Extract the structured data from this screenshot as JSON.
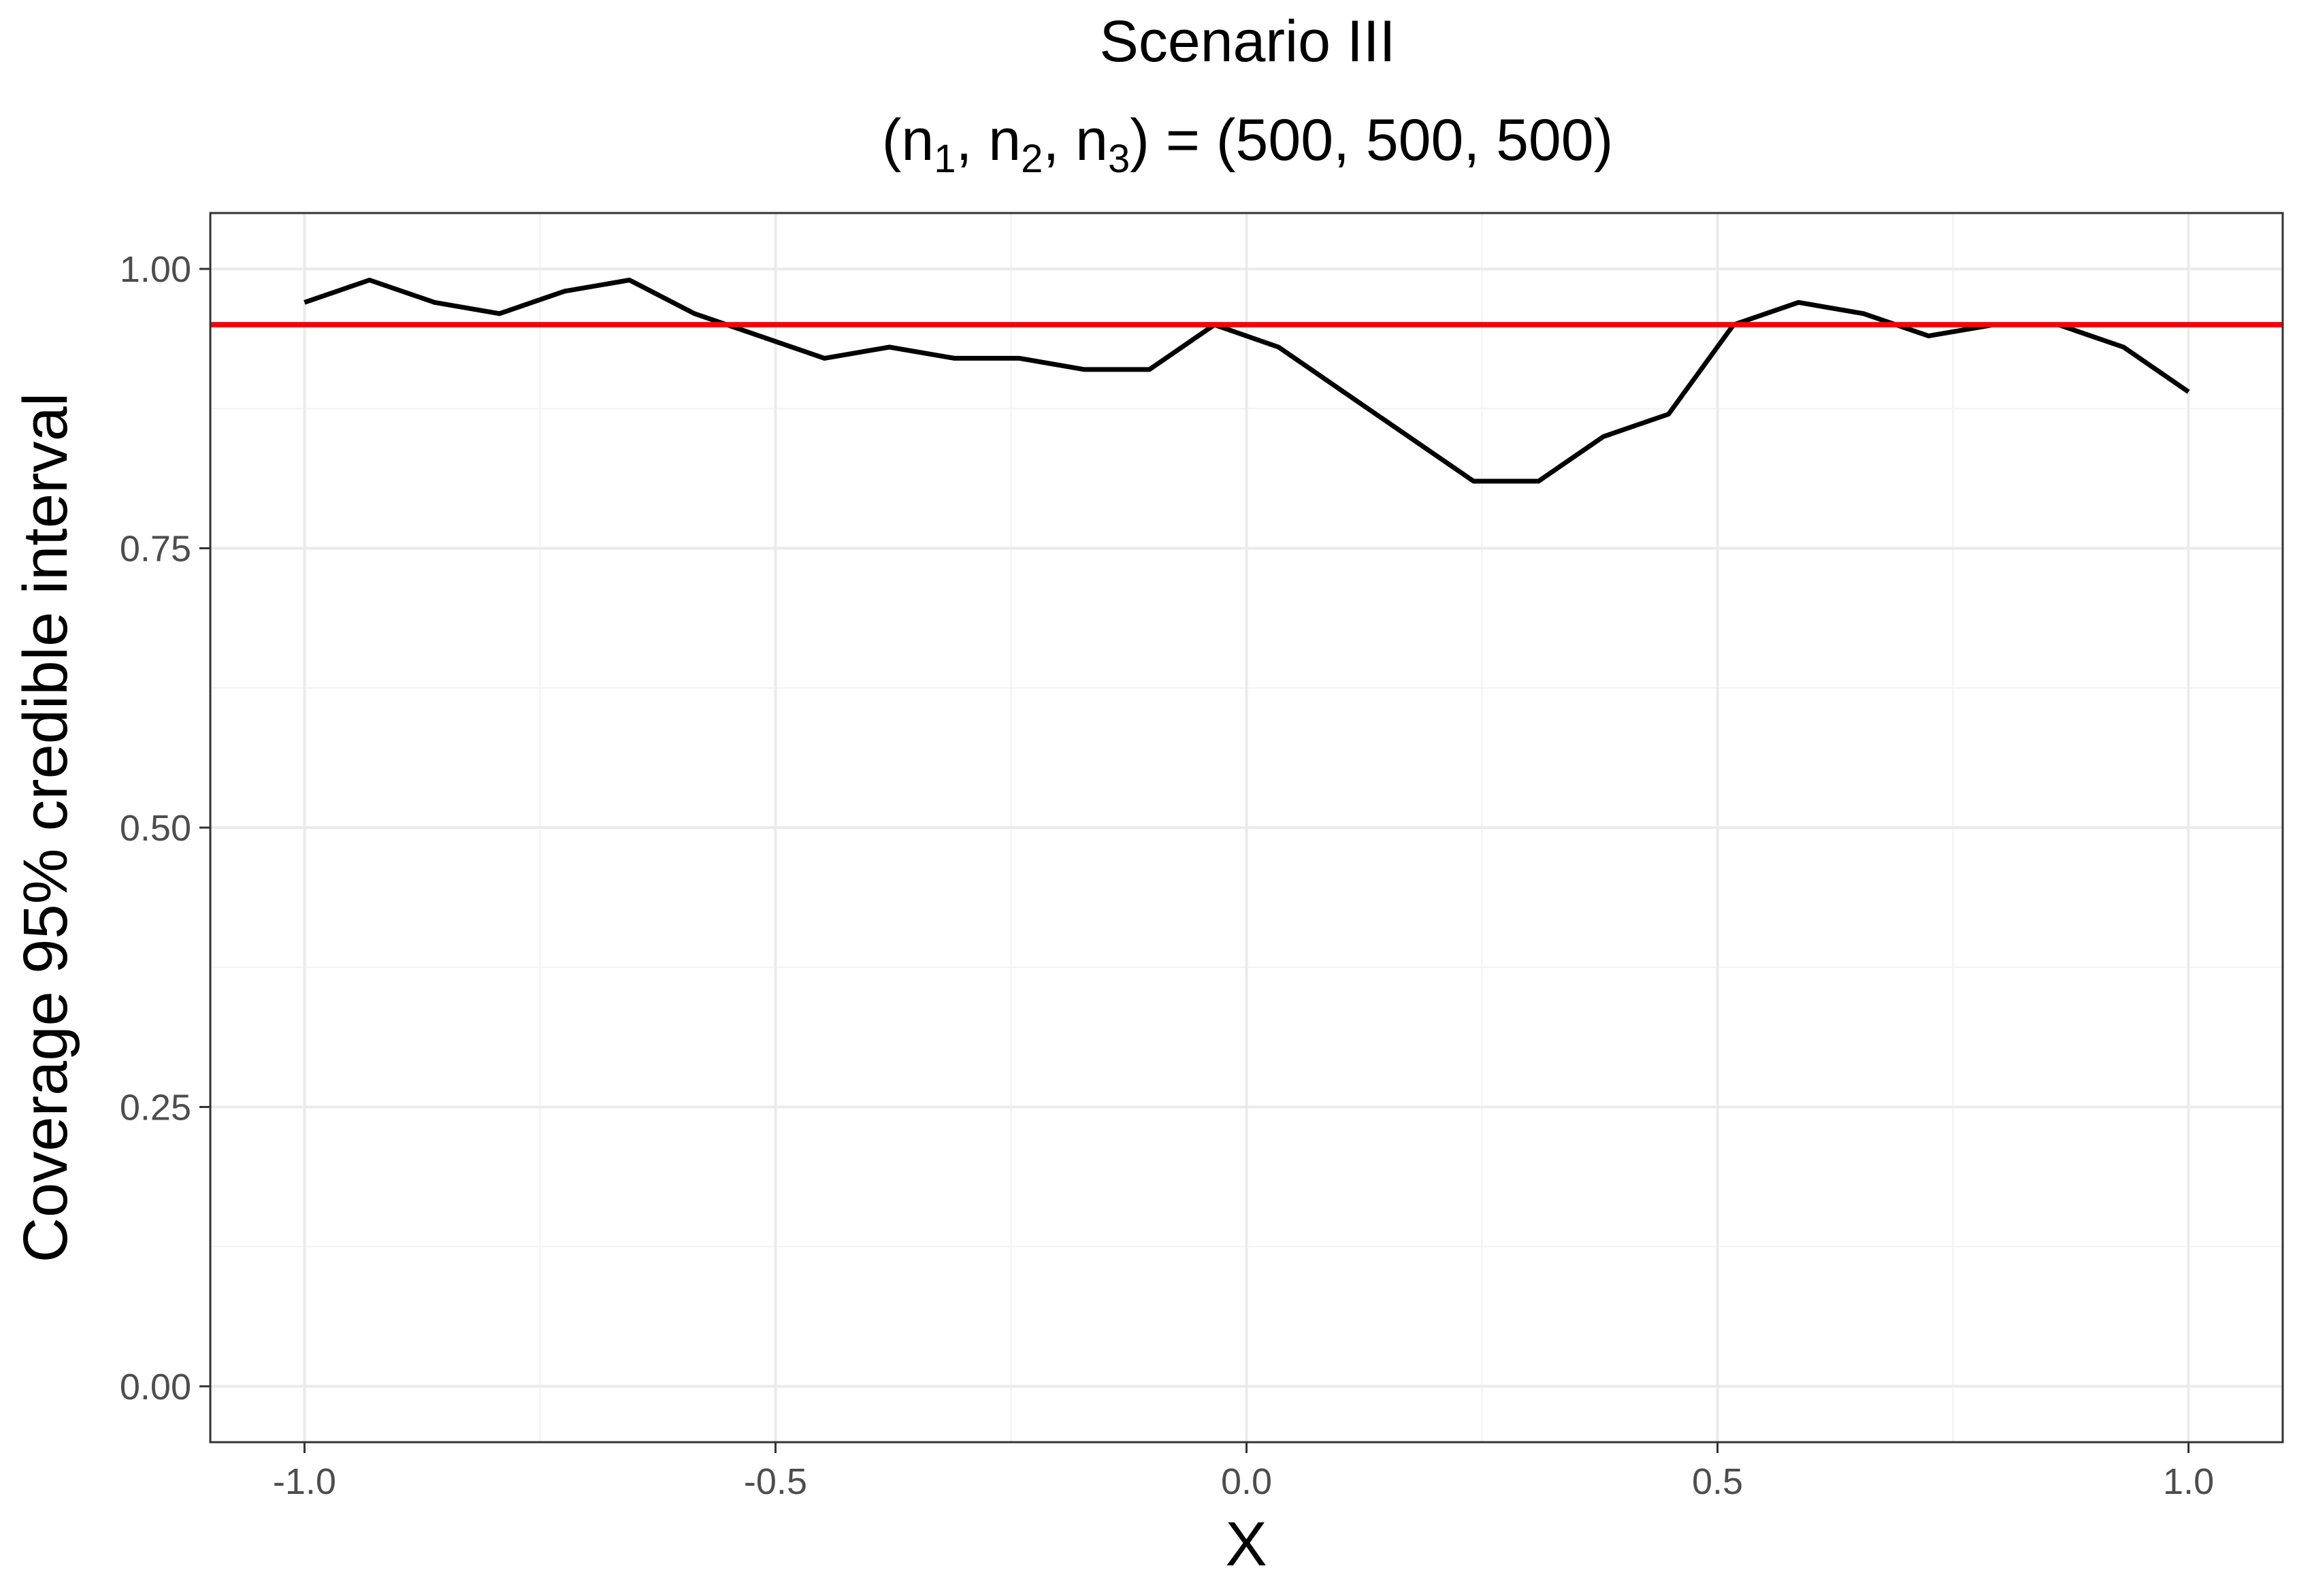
{
  "chart_data": {
    "type": "line",
    "title": "Scenario III",
    "subtitle": {
      "prefix": "(n",
      "sub1": "1",
      "sep1": ", n",
      "sub2": "2",
      "sep2": ", n",
      "sub3": "3",
      "suffix": ") = (500, 500, 500)"
    },
    "xlabel": "X",
    "ylabel": "Coverage 95% credible interval",
    "xlim": [
      -1.1,
      1.1
    ],
    "ylim": [
      -0.05,
      1.05
    ],
    "x_ticks": [
      -1.0,
      -0.5,
      0.0,
      0.5,
      1.0
    ],
    "x_tick_labels": [
      "-1.0",
      "-0.5",
      "0.0",
      "0.5",
      "1.0"
    ],
    "y_ticks": [
      0.0,
      0.25,
      0.5,
      0.75,
      1.0
    ],
    "y_tick_labels": [
      "0.00",
      "0.25",
      "0.50",
      "0.75",
      "1.00"
    ],
    "grid": true,
    "series": [
      {
        "color": "#000000",
        "x": [
          -1.0,
          -0.931,
          -0.862,
          -0.793,
          -0.724,
          -0.655,
          -0.586,
          -0.517,
          -0.448,
          -0.379,
          -0.31,
          -0.241,
          -0.172,
          -0.103,
          -0.034,
          0.034,
          0.103,
          0.172,
          0.241,
          0.31,
          0.379,
          0.448,
          0.517,
          0.586,
          0.655,
          0.724,
          0.793,
          0.862,
          0.931,
          1.0
        ],
        "y": [
          0.97,
          0.99,
          0.97,
          0.96,
          0.98,
          0.99,
          0.96,
          0.94,
          0.92,
          0.93,
          0.92,
          0.92,
          0.91,
          0.91,
          0.95,
          0.93,
          0.89,
          0.85,
          0.81,
          0.81,
          0.85,
          0.87,
          0.95,
          0.97,
          0.96,
          0.94,
          0.95,
          0.95,
          0.93,
          0.89
        ]
      }
    ],
    "reference_line": {
      "y": 0.95,
      "color": "#ff0000"
    }
  }
}
